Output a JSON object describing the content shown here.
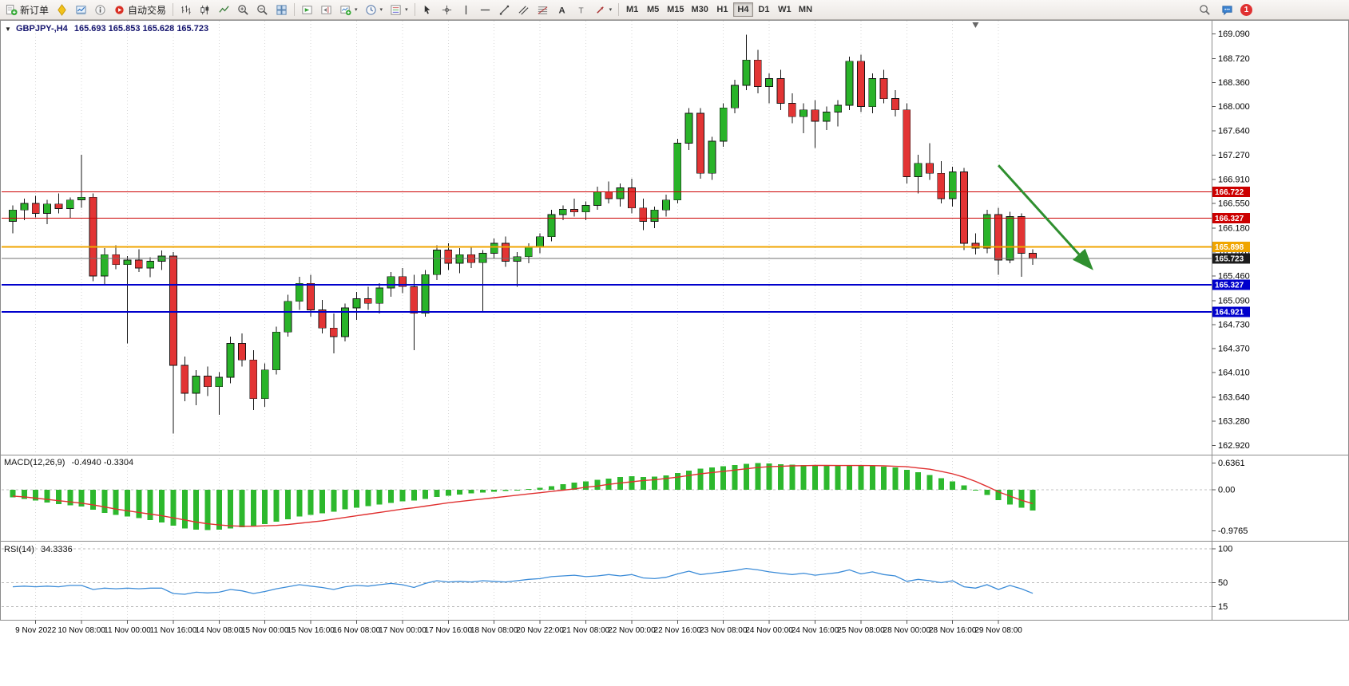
{
  "toolbar": {
    "new_order_label": "新订单",
    "autotrading_label": "自动交易",
    "timeframes": [
      "M1",
      "M5",
      "M15",
      "M30",
      "H1",
      "H4",
      "D1",
      "W1",
      "MN"
    ],
    "active_timeframe": "H4",
    "notification_count": "1"
  },
  "chart_data": [
    {
      "type": "candlestick",
      "collapse_arrow": "▼",
      "symbol_label": "GBPJPY-,H4",
      "ohlc_label": "165.693 165.853 165.628 165.723",
      "timeframe": "H4",
      "ylim": [
        162.78,
        169.3
      ],
      "y_ticks": [
        169.09,
        168.72,
        168.36,
        168.0,
        167.64,
        167.27,
        166.91,
        166.55,
        166.18,
        165.82,
        165.46,
        165.09,
        164.73,
        164.37,
        164.01,
        163.64,
        163.28,
        162.92
      ],
      "x_labels": [
        "9 Nov 2022",
        "10 Nov 08:00",
        "11 Nov 00:00",
        "11 Nov 16:00",
        "14 Nov 08:00",
        "15 Nov 00:00",
        "15 Nov 16:00",
        "16 Nov 08:00",
        "17 Nov 00:00",
        "17 Nov 16:00",
        "18 Nov 08:00",
        "20 Nov 22:00",
        "21 Nov 08:00",
        "22 Nov 00:00",
        "22 Nov 16:00",
        "23 Nov 08:00",
        "24 Nov 00:00",
        "24 Nov 16:00",
        "25 Nov 08:00",
        "28 Nov 00:00",
        "28 Nov 16:00",
        "29 Nov 08:00"
      ],
      "x_label_indices": [
        2,
        6,
        10,
        14,
        18,
        22,
        26,
        30,
        34,
        38,
        42,
        46,
        50,
        54,
        58,
        62,
        66,
        70,
        74,
        78,
        82,
        86
      ],
      "colors": {
        "up": "#29b329",
        "down": "#e23434",
        "wick": "#151515"
      },
      "candles": [
        [
          166.28,
          166.52,
          166.1,
          166.45
        ],
        [
          166.45,
          166.62,
          166.3,
          166.55
        ],
        [
          166.55,
          166.66,
          166.34,
          166.4
        ],
        [
          166.4,
          166.6,
          166.24,
          166.54
        ],
        [
          166.54,
          166.7,
          166.4,
          166.47
        ],
        [
          166.47,
          166.64,
          166.32,
          166.6
        ],
        [
          166.6,
          167.28,
          166.48,
          166.64
        ],
        [
          166.64,
          166.7,
          165.38,
          165.46
        ],
        [
          165.46,
          165.88,
          165.32,
          165.78
        ],
        [
          165.78,
          165.92,
          165.56,
          165.63
        ],
        [
          165.63,
          165.76,
          164.45,
          165.7
        ],
        [
          165.7,
          165.86,
          165.52,
          165.58
        ],
        [
          165.58,
          165.74,
          165.44,
          165.68
        ],
        [
          165.68,
          165.84,
          165.55,
          165.76
        ],
        [
          165.76,
          165.82,
          163.1,
          164.12
        ],
        [
          164.12,
          164.25,
          163.58,
          163.7
        ],
        [
          163.7,
          164.05,
          163.52,
          163.96
        ],
        [
          163.96,
          164.1,
          163.66,
          163.8
        ],
        [
          163.8,
          164.02,
          163.38,
          163.94
        ],
        [
          163.94,
          164.55,
          163.85,
          164.45
        ],
        [
          164.45,
          164.6,
          164.1,
          164.2
        ],
        [
          164.2,
          164.35,
          163.45,
          163.62
        ],
        [
          163.62,
          164.15,
          163.5,
          164.05
        ],
        [
          164.05,
          164.7,
          163.98,
          164.62
        ],
        [
          164.62,
          165.18,
          164.55,
          165.08
        ],
        [
          165.08,
          165.45,
          164.95,
          165.35
        ],
        [
          165.35,
          165.48,
          164.85,
          164.95
        ],
        [
          164.95,
          165.1,
          164.6,
          164.68
        ],
        [
          164.68,
          164.9,
          164.3,
          164.55
        ],
        [
          164.55,
          165.05,
          164.48,
          164.98
        ],
        [
          164.98,
          165.22,
          164.8,
          165.12
        ],
        [
          165.12,
          165.3,
          164.95,
          165.05
        ],
        [
          165.05,
          165.35,
          164.9,
          165.28
        ],
        [
          165.28,
          165.52,
          165.15,
          165.45
        ],
        [
          165.45,
          165.58,
          165.2,
          165.3
        ],
        [
          165.3,
          165.48,
          164.35,
          164.9
        ],
        [
          164.9,
          165.55,
          164.85,
          165.48
        ],
        [
          165.48,
          165.92,
          165.4,
          165.85
        ],
        [
          165.85,
          165.95,
          165.55,
          165.65
        ],
        [
          165.65,
          165.88,
          165.5,
          165.78
        ],
        [
          165.78,
          165.9,
          165.58,
          165.66
        ],
        [
          165.66,
          165.85,
          164.92,
          165.8
        ],
        [
          165.8,
          166.02,
          165.72,
          165.95
        ],
        [
          165.95,
          166.05,
          165.6,
          165.68
        ],
        [
          165.68,
          165.82,
          165.3,
          165.75
        ],
        [
          165.75,
          165.95,
          165.65,
          165.9
        ],
        [
          165.9,
          166.1,
          165.8,
          166.05
        ],
        [
          166.05,
          166.45,
          165.98,
          166.38
        ],
        [
          166.38,
          166.52,
          166.3,
          166.46
        ],
        [
          166.46,
          166.62,
          166.35,
          166.42
        ],
        [
          166.42,
          166.58,
          166.3,
          166.52
        ],
        [
          166.52,
          166.8,
          166.45,
          166.72
        ],
        [
          166.72,
          166.88,
          166.55,
          166.62
        ],
        [
          166.62,
          166.85,
          166.5,
          166.78
        ],
        [
          166.78,
          166.92,
          166.4,
          166.48
        ],
        [
          166.48,
          166.62,
          166.15,
          166.28
        ],
        [
          166.28,
          166.5,
          166.18,
          166.45
        ],
        [
          166.45,
          166.68,
          166.35,
          166.6
        ],
        [
          166.6,
          167.52,
          166.55,
          167.45
        ],
        [
          167.45,
          167.98,
          167.35,
          167.9
        ],
        [
          167.9,
          167.98,
          166.92,
          167.0
        ],
        [
          167.0,
          167.55,
          166.9,
          167.48
        ],
        [
          167.48,
          168.05,
          167.4,
          167.98
        ],
        [
          167.98,
          168.4,
          167.9,
          168.32
        ],
        [
          168.32,
          169.08,
          168.25,
          168.7
        ],
        [
          168.7,
          168.85,
          168.2,
          168.3
        ],
        [
          168.3,
          168.5,
          168.05,
          168.42
        ],
        [
          168.42,
          168.55,
          167.95,
          168.05
        ],
        [
          168.05,
          168.2,
          167.75,
          167.85
        ],
        [
          167.85,
          168.05,
          167.6,
          167.95
        ],
        [
          167.95,
          168.1,
          167.38,
          167.78
        ],
        [
          167.78,
          168.0,
          167.65,
          167.92
        ],
        [
          167.92,
          168.1,
          167.7,
          168.02
        ],
        [
          168.02,
          168.75,
          167.95,
          168.68
        ],
        [
          168.68,
          168.78,
          167.92,
          168.0
        ],
        [
          168.0,
          168.5,
          167.9,
          168.42
        ],
        [
          168.42,
          168.55,
          168.05,
          168.12
        ],
        [
          168.12,
          168.25,
          167.85,
          167.95
        ],
        [
          167.95,
          168.05,
          166.85,
          166.95
        ],
        [
          166.95,
          167.28,
          166.7,
          167.15
        ],
        [
          167.15,
          167.45,
          166.9,
          167.0
        ],
        [
          167.0,
          167.18,
          166.55,
          166.62
        ],
        [
          166.62,
          167.1,
          166.5,
          167.02
        ],
        [
          167.02,
          167.08,
          165.85,
          165.95
        ],
        [
          165.95,
          166.1,
          165.78,
          165.88
        ],
        [
          165.88,
          166.45,
          165.8,
          166.38
        ],
        [
          166.38,
          166.48,
          165.48,
          165.7
        ],
        [
          165.7,
          166.42,
          165.65,
          166.35
        ],
        [
          166.35,
          166.4,
          165.45,
          165.8
        ],
        [
          165.8,
          165.86,
          165.63,
          165.72
        ]
      ],
      "hlines": [
        {
          "price": 166.722,
          "label": "166.722",
          "color": "#cc0000",
          "line_width": 1
        },
        {
          "price": 166.327,
          "label": "166.327",
          "color": "#cc0000",
          "line_width": 1
        },
        {
          "price": 165.898,
          "label": "165.898",
          "color": "#f0a500",
          "line_width": 2
        },
        {
          "price": 165.723,
          "label": "165.723",
          "color": "#707070",
          "tag_color": "#1c1c1c",
          "line_width": 1
        },
        {
          "price": 165.327,
          "label": "165.327",
          "color": "#0000cc",
          "line_width": 2
        },
        {
          "price": 164.921,
          "label": "164.921",
          "color": "#0000cc",
          "line_width": 2
        }
      ],
      "arrow": {
        "from_index": 86,
        "from_price": 167.12,
        "to_index": 94,
        "to_price": 165.6,
        "color": "#2f8f2f",
        "width": 3
      },
      "shift_marker_index": 84
    },
    {
      "type": "bar",
      "label": "MACD(12,26,9)",
      "values_label": "-0.4940 -0.3304",
      "ylim": [
        -1.18,
        0.78
      ],
      "y_ticks": [
        {
          "value": 0.6361,
          "label": "0.6361"
        },
        {
          "value": 0,
          "label": "0.00"
        },
        {
          "value": -0.9765,
          "label": "-0.9765"
        }
      ],
      "hist_color": "#2db82d",
      "signal_color": "#e03030",
      "histogram": [
        -0.18,
        -0.22,
        -0.26,
        -0.3,
        -0.34,
        -0.37,
        -0.4,
        -0.48,
        -0.55,
        -0.6,
        -0.64,
        -0.68,
        -0.72,
        -0.78,
        -0.86,
        -0.92,
        -0.95,
        -0.96,
        -0.95,
        -0.92,
        -0.89,
        -0.86,
        -0.82,
        -0.76,
        -0.7,
        -0.64,
        -0.6,
        -0.56,
        -0.52,
        -0.47,
        -0.43,
        -0.39,
        -0.35,
        -0.31,
        -0.28,
        -0.26,
        -0.22,
        -0.17,
        -0.14,
        -0.11,
        -0.09,
        -0.07,
        -0.05,
        -0.03,
        -0.01,
        0.02,
        0.05,
        0.09,
        0.13,
        0.17,
        0.2,
        0.24,
        0.27,
        0.3,
        0.32,
        0.3,
        0.31,
        0.34,
        0.4,
        0.46,
        0.5,
        0.53,
        0.56,
        0.59,
        0.62,
        0.635,
        0.63,
        0.61,
        0.6,
        0.59,
        0.58,
        0.575,
        0.57,
        0.585,
        0.58,
        0.57,
        0.555,
        0.53,
        0.48,
        0.42,
        0.35,
        0.28,
        0.2,
        0.1,
        0.0,
        -0.12,
        -0.25,
        -0.35,
        -0.43,
        -0.494
      ],
      "signal": [
        -0.15,
        -0.17,
        -0.2,
        -0.23,
        -0.26,
        -0.29,
        -0.32,
        -0.36,
        -0.41,
        -0.46,
        -0.5,
        -0.54,
        -0.58,
        -0.62,
        -0.67,
        -0.72,
        -0.77,
        -0.81,
        -0.84,
        -0.86,
        -0.87,
        -0.87,
        -0.86,
        -0.85,
        -0.83,
        -0.8,
        -0.77,
        -0.74,
        -0.7,
        -0.66,
        -0.62,
        -0.58,
        -0.54,
        -0.5,
        -0.46,
        -0.43,
        -0.39,
        -0.35,
        -0.31,
        -0.28,
        -0.25,
        -0.22,
        -0.19,
        -0.16,
        -0.13,
        -0.1,
        -0.07,
        -0.04,
        -0.01,
        0.02,
        0.06,
        0.09,
        0.13,
        0.16,
        0.19,
        0.22,
        0.24,
        0.27,
        0.3,
        0.34,
        0.38,
        0.41,
        0.44,
        0.47,
        0.5,
        0.53,
        0.55,
        0.56,
        0.57,
        0.575,
        0.58,
        0.58,
        0.578,
        0.578,
        0.578,
        0.576,
        0.57,
        0.56,
        0.55,
        0.52,
        0.49,
        0.44,
        0.38,
        0.3,
        0.2,
        0.08,
        -0.05,
        -0.15,
        -0.25,
        -0.3304
      ]
    },
    {
      "type": "line",
      "label": "RSI(14)",
      "value_label": "34.3336",
      "ylim": [
        0,
        100
      ],
      "y_ticks": [
        {
          "value": 100,
          "label": "100"
        },
        {
          "value": 50,
          "label": "50"
        },
        {
          "value": 15,
          "label": "15"
        }
      ],
      "levels": [
        100,
        50,
        15
      ],
      "line_color": "#3c8cd8",
      "values": [
        44,
        45,
        44,
        45,
        44,
        46,
        46,
        40,
        42,
        41,
        42,
        41,
        42,
        42,
        34,
        33,
        36,
        35,
        36,
        40,
        38,
        34,
        37,
        41,
        44,
        47,
        45,
        43,
        40,
        44,
        46,
        45,
        47,
        49,
        47,
        43,
        49,
        53,
        51,
        52,
        51,
        53,
        52,
        51,
        53,
        55,
        56,
        59,
        60,
        61,
        59,
        60,
        62,
        60,
        62,
        57,
        56,
        58,
        63,
        67,
        62,
        64,
        66,
        68,
        71,
        69,
        66,
        64,
        62,
        64,
        61,
        63,
        65,
        69,
        63,
        66,
        62,
        60,
        52,
        55,
        53,
        50,
        53,
        44,
        42,
        47,
        40,
        46,
        41,
        34.33
      ]
    }
  ]
}
